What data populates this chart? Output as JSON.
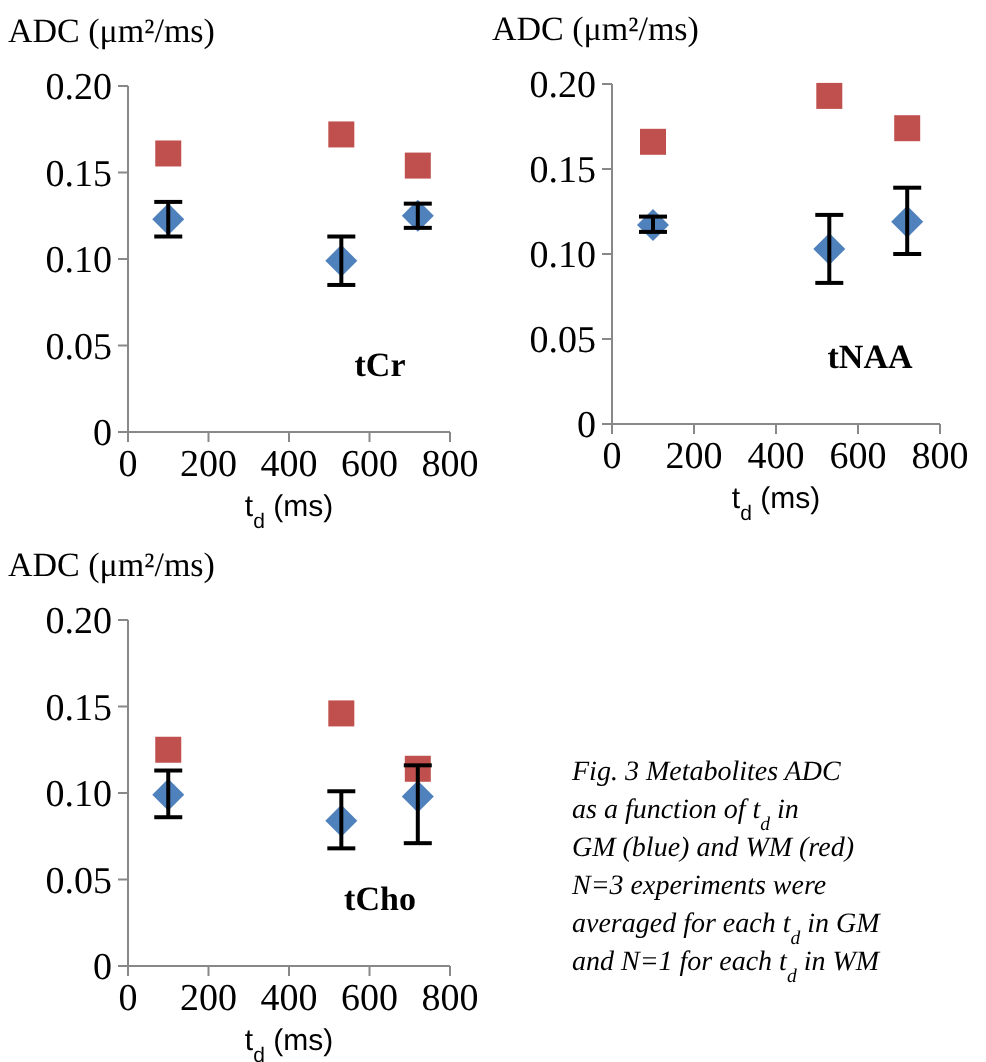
{
  "chart_data": [
    {
      "type": "scatter",
      "title": "tCr",
      "ylabel": "ADC (μm²/ms)",
      "xlabel": "t$_{d}$ (ms)",
      "xlim": [
        0,
        800
      ],
      "xticks": [
        0,
        200,
        400,
        600,
        800
      ],
      "ylim": [
        0,
        0.2
      ],
      "yticks": [
        {
          "value": 0,
          "label": "0"
        },
        {
          "value": 0.05,
          "label": "0.05"
        },
        {
          "value": 0.1,
          "label": "0.10"
        },
        {
          "value": 0.15,
          "label": "0.15"
        },
        {
          "value": 0.2,
          "label": "0.20"
        }
      ],
      "x": [
        100,
        530,
        720
      ],
      "series": [
        {
          "color": "#4f81bd",
          "marker": "diamond",
          "values": [
            0.123,
            0.099,
            0.125
          ],
          "errors": [
            [
              0.113,
              0.133
            ],
            [
              0.085,
              0.113
            ],
            [
              0.118,
              0.132
            ]
          ]
        },
        {
          "color": "#c0504d",
          "marker": "square",
          "values": [
            0.161,
            0.172,
            0.154
          ]
        }
      ]
    },
    {
      "type": "scatter",
      "title": "tNAA",
      "ylabel": "ADC (μm²/ms)",
      "xlabel": "t$_{d}$ (ms)",
      "xlim": [
        0,
        800
      ],
      "xticks": [
        0,
        200,
        400,
        600,
        800
      ],
      "ylim": [
        0,
        0.2
      ],
      "yticks": [
        {
          "value": 0,
          "label": "0"
        },
        {
          "value": 0.05,
          "label": "0.05"
        },
        {
          "value": 0.1,
          "label": "0.10"
        },
        {
          "value": 0.15,
          "label": "0.15"
        },
        {
          "value": 0.2,
          "label": "0.20"
        }
      ],
      "x": [
        100,
        530,
        720
      ],
      "series": [
        {
          "color": "#4f81bd",
          "marker": "diamond",
          "values": [
            0.117,
            0.103,
            0.119
          ],
          "errors": [
            [
              0.113,
              0.122
            ],
            [
              0.083,
              0.123
            ],
            [
              0.1,
              0.139
            ]
          ]
        },
        {
          "color": "#c0504d",
          "marker": "square",
          "values": [
            0.166,
            0.193,
            0.174
          ]
        }
      ]
    },
    {
      "type": "scatter",
      "title": "tCho",
      "ylabel": "ADC (μm²/ms)",
      "xlabel": "t$_{d}$ (ms)",
      "xlim": [
        0,
        800
      ],
      "xticks": [
        0,
        200,
        400,
        600,
        800
      ],
      "ylim": [
        0,
        0.2
      ],
      "yticks": [
        {
          "value": 0,
          "label": "0"
        },
        {
          "value": 0.05,
          "label": "0.05"
        },
        {
          "value": 0.1,
          "label": "0.10"
        },
        {
          "value": 0.15,
          "label": "0.15"
        },
        {
          "value": 0.2,
          "label": "0.20"
        }
      ],
      "x": [
        100,
        530,
        720
      ],
      "series": [
        {
          "color": "#4f81bd",
          "marker": "diamond",
          "values": [
            0.099,
            0.084,
            0.098
          ],
          "errors": [
            [
              0.086,
              0.113
            ],
            [
              0.068,
              0.101
            ],
            [
              0.071,
              0.116
            ]
          ]
        },
        {
          "color": "#c0504d",
          "marker": "square",
          "values": [
            0.125,
            0.146,
            0.114
          ]
        }
      ],
      "annotations": [
        "Fig. 3 Metabolites ADC",
        "as a function of t$_{d}$ in",
        "GM (blue) and WM (red)",
        "N=3 experiments were",
        "averaged for each t$_{d}$ in GM",
        "and N=1 for each t$_{d}$ in WM"
      ]
    }
  ]
}
